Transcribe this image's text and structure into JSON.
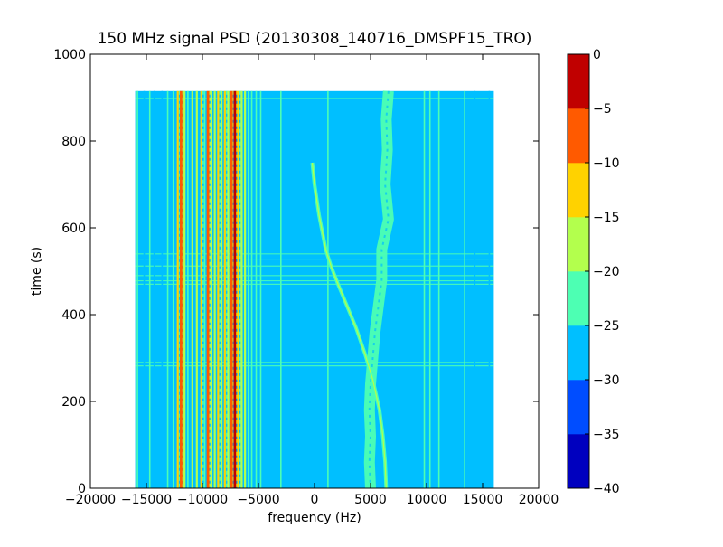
{
  "chart_data": {
    "type": "heatmap",
    "title": "150 MHz signal PSD (20130308_140716_DMSPF15_TRO)",
    "xlabel": "frequency (Hz)",
    "ylabel": "time (s)",
    "xlim": [
      -20000,
      20000
    ],
    "ylim": [
      0,
      1000
    ],
    "xticks": [
      "−20000",
      "−15000",
      "−10000",
      "−5000",
      "0",
      "5000",
      "10000",
      "15000",
      "20000"
    ],
    "xtick_values": [
      -20000,
      -15000,
      -10000,
      -5000,
      0,
      5000,
      10000,
      15000,
      20000
    ],
    "yticks": [
      "0",
      "200",
      "400",
      "600",
      "800",
      "1000"
    ],
    "ytick_values": [
      0,
      200,
      400,
      600,
      800,
      1000
    ],
    "data_extent": {
      "x": [
        -16000,
        16000
      ],
      "y": [
        0,
        915
      ]
    },
    "background_level": -27.5,
    "colorbar": {
      "levels": [
        -40,
        -35,
        -30,
        -25,
        -20,
        -15,
        -10,
        -5,
        0
      ],
      "tick_labels": [
        "−40",
        "−35",
        "−30",
        "−25",
        "−20",
        "−15",
        "−10",
        "−5",
        "0"
      ],
      "colors": [
        "#0000bf",
        "#004dff",
        "#00bfff",
        "#4dffb3",
        "#b3ff4d",
        "#ffd200",
        "#ff5a00",
        "#c00000"
      ]
    },
    "vertical_lines": [
      {
        "x": -15800,
        "band": 3
      },
      {
        "x": -15200,
        "band": 2
      },
      {
        "x": -14700,
        "band": 3
      },
      {
        "x": -14300,
        "band": 2
      },
      {
        "x": -13600,
        "band": 2
      },
      {
        "x": -13100,
        "band": 3
      },
      {
        "x": -12600,
        "band": 3
      },
      {
        "x": -12200,
        "band": 5
      },
      {
        "x": -11900,
        "band": 6
      },
      {
        "x": -11600,
        "band": 4
      },
      {
        "x": -11300,
        "band": 3
      },
      {
        "x": -10900,
        "band": 4
      },
      {
        "x": -10500,
        "band": 4
      },
      {
        "x": -10100,
        "band": 5
      },
      {
        "x": -9800,
        "band": 3
      },
      {
        "x": -9500,
        "band": 6
      },
      {
        "x": -9200,
        "band": 4
      },
      {
        "x": -8900,
        "band": 4
      },
      {
        "x": -8600,
        "band": 5
      },
      {
        "x": -8300,
        "band": 4
      },
      {
        "x": -8000,
        "band": 5
      },
      {
        "x": -7700,
        "band": 4
      },
      {
        "x": -7400,
        "band": 6
      },
      {
        "x": -7100,
        "band": 7
      },
      {
        "x": -6800,
        "band": 5
      },
      {
        "x": -6500,
        "band": 4
      },
      {
        "x": -6200,
        "band": 4
      },
      {
        "x": -5900,
        "band": 3
      },
      {
        "x": -5600,
        "band": 3
      },
      {
        "x": -5200,
        "band": 3
      },
      {
        "x": -4800,
        "band": 3
      },
      {
        "x": -3000,
        "band": 3
      },
      {
        "x": 1200,
        "band": 3
      },
      {
        "x": 9800,
        "band": 3
      },
      {
        "x": 10300,
        "band": 3
      },
      {
        "x": 11100,
        "band": 3
      },
      {
        "x": 13400,
        "band": 3
      },
      {
        "x": 14300,
        "band": 2
      },
      {
        "x": 15600,
        "band": 2
      }
    ],
    "diagonal_trace": {
      "band": 3,
      "points": [
        [
          -200,
          750
        ],
        [
          0,
          700
        ],
        [
          400,
          630
        ],
        [
          700,
          590
        ],
        [
          1000,
          550
        ],
        [
          1500,
          510
        ],
        [
          2100,
          470
        ],
        [
          2900,
          420
        ],
        [
          3700,
          370
        ],
        [
          4500,
          310
        ],
        [
          5200,
          250
        ],
        [
          5800,
          180
        ],
        [
          6100,
          120
        ],
        [
          6300,
          60
        ],
        [
          6400,
          0
        ]
      ]
    },
    "wandering_band": {
      "band": 3,
      "points": [
        [
          6600,
          915
        ],
        [
          6400,
          850
        ],
        [
          6500,
          780
        ],
        [
          6300,
          700
        ],
        [
          6600,
          620
        ],
        [
          6000,
          550
        ],
        [
          6000,
          480
        ],
        [
          5700,
          420
        ],
        [
          5400,
          360
        ],
        [
          5200,
          300
        ],
        [
          5000,
          240
        ],
        [
          4900,
          180
        ],
        [
          5000,
          120
        ],
        [
          4900,
          60
        ],
        [
          5000,
          0
        ]
      ]
    },
    "horizontal_lines": [
      290,
      282,
      470,
      478,
      490,
      512,
      528,
      540,
      898
    ]
  }
}
